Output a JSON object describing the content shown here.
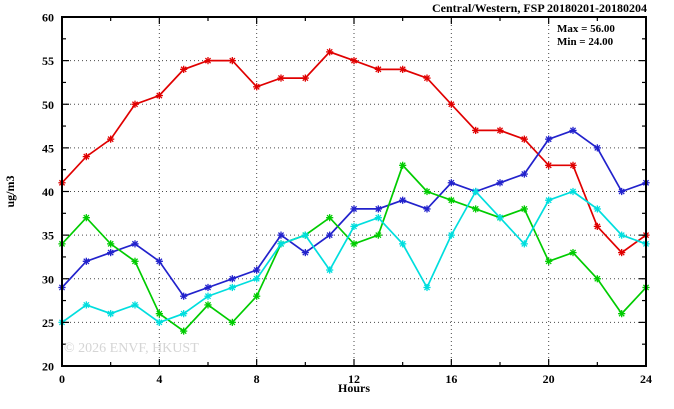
{
  "title": "Central/Western, FSP 20180201-20180204",
  "annotations": {
    "max_label": "Max = 56.00",
    "min_label": "Min = 24.00"
  },
  "watermark": "© 2026 ENVF, HKUST",
  "chart_data": {
    "type": "line",
    "title": "Central/Western, FSP 20180201-20180204",
    "xlabel": "Hours",
    "ylabel": "ug/m3",
    "xlim": [
      0,
      24
    ],
    "ylim": [
      20,
      60
    ],
    "xticks": [
      0,
      4,
      8,
      12,
      16,
      20,
      24
    ],
    "yticks": [
      20,
      25,
      30,
      35,
      40,
      45,
      50,
      55,
      60
    ],
    "minor_xtick_interval": 2,
    "minor_ytick_interval": 2.5,
    "grid": true,
    "legend": "none",
    "marker": "asterisk",
    "x": [
      0,
      1,
      2,
      3,
      4,
      5,
      6,
      7,
      8,
      9,
      10,
      11,
      12,
      13,
      14,
      15,
      16,
      17,
      18,
      19,
      20,
      21,
      22,
      23,
      24
    ],
    "series": [
      {
        "name": "red-series",
        "color": "#e00000",
        "values": [
          41,
          44,
          46,
          50,
          51,
          54,
          55,
          55,
          52,
          53,
          53,
          56,
          55,
          54,
          54,
          53,
          50,
          47,
          47,
          46,
          43,
          43,
          36,
          33,
          35
        ]
      },
      {
        "name": "blue-series",
        "color": "#2222cc",
        "values": [
          29,
          32,
          33,
          34,
          32,
          28,
          29,
          30,
          31,
          35,
          33,
          35,
          38,
          38,
          39,
          38,
          41,
          40,
          41,
          42,
          46,
          47,
          45,
          40,
          41
        ]
      },
      {
        "name": "green-series",
        "color": "#00cc00",
        "values": [
          34,
          37,
          34,
          32,
          26,
          24,
          27,
          25,
          28,
          34,
          35,
          37,
          34,
          35,
          43,
          40,
          39,
          38,
          37,
          38,
          32,
          33,
          30,
          26,
          29
        ]
      },
      {
        "name": "cyan-series",
        "color": "#00dede",
        "values": [
          25,
          27,
          26,
          27,
          25,
          26,
          28,
          29,
          30,
          34,
          35,
          31,
          36,
          37,
          34,
          29,
          35,
          40,
          37,
          34,
          39,
          40,
          38,
          35,
          34
        ]
      }
    ],
    "max": 56.0,
    "min": 24.0
  }
}
